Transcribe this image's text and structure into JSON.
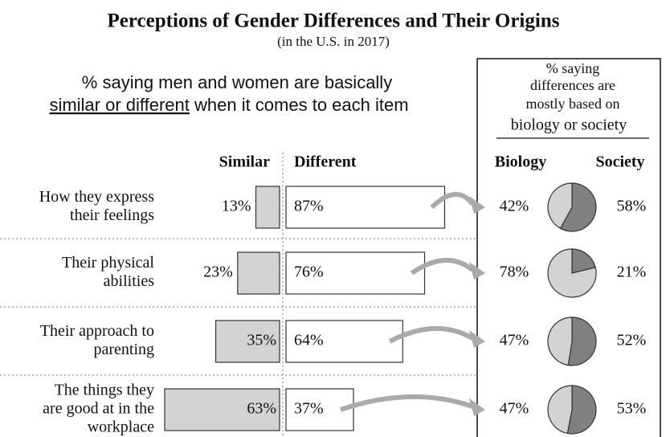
{
  "chart_data": {
    "type": "bar",
    "title": "Perceptions of Gender Differences and Their Origins",
    "subtitle": "(in the U.S. in 2017)",
    "left_heading": [
      "% saying men and women are basically",
      "similar or different",
      " when it comes to each item"
    ],
    "right_heading": [
      "% saying",
      "differences are",
      "mostly based on",
      "biology or society"
    ],
    "categories": [
      [
        "How they express",
        "their feelings"
      ],
      [
        "Their physical",
        "abilities"
      ],
      [
        "Their approach to",
        "parenting"
      ],
      [
        "The things they",
        "are good at in the",
        "workplace"
      ]
    ],
    "series": [
      {
        "name": "Similar",
        "color": "#d3d3d3",
        "values": [
          13,
          23,
          35,
          63
        ],
        "value_labels": [
          "13%",
          "23%",
          "35%",
          "63%"
        ]
      },
      {
        "name": "Different",
        "color": "#ffffff",
        "values": [
          87,
          76,
          64,
          37
        ],
        "value_labels": [
          "87%",
          "76%",
          "64%",
          "37%"
        ]
      },
      {
        "name": "Biology",
        "color": "#d3d3d3",
        "values": [
          42,
          78,
          47,
          47
        ],
        "value_labels": [
          "42%",
          "78%",
          "47%",
          "47%"
        ]
      },
      {
        "name": "Society",
        "color": "#808080",
        "values": [
          58,
          21,
          52,
          53
        ],
        "value_labels": [
          "58%",
          "21%",
          "52%",
          "53%"
        ]
      }
    ]
  }
}
